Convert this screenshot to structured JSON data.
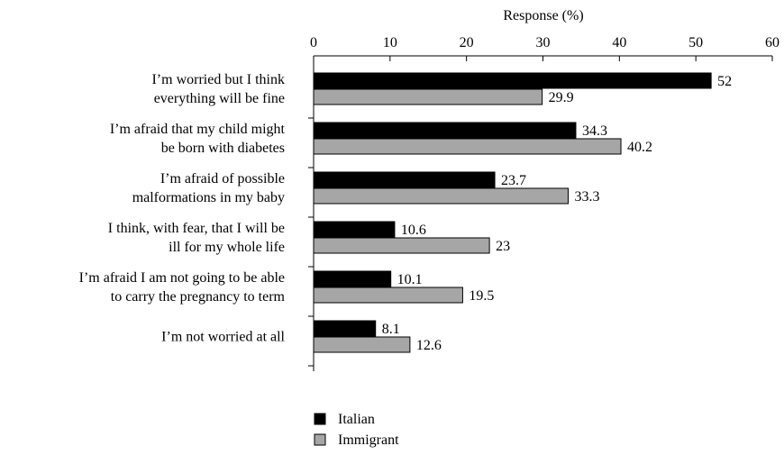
{
  "chart_data": {
    "type": "bar",
    "orientation": "horizontal",
    "xlabel": "Response (%)",
    "xlim": [
      0,
      60
    ],
    "xticks": [
      0,
      10,
      20,
      30,
      40,
      50,
      60
    ],
    "categories": [
      [
        "I’m worried but I think",
        "everything will be fine"
      ],
      [
        "I’m afraid that my child might",
        "be born with diabetes"
      ],
      [
        "I’m afraid of possible",
        "malformations in my baby"
      ],
      [
        "I think, with fear, that I will be",
        "ill for my whole life"
      ],
      [
        "I’m afraid I am not going to be able",
        "to carry the pregnancy to term"
      ],
      [
        "I’m not worried at all"
      ]
    ],
    "series": [
      {
        "name": "Italian",
        "color": "#000000",
        "values": [
          52,
          34.3,
          23.7,
          10.6,
          10.1,
          8.1
        ]
      },
      {
        "name": "Immigrant",
        "color": "#a6a6a6",
        "values": [
          29.9,
          40.2,
          33.3,
          23,
          19.5,
          12.6
        ]
      }
    ],
    "legend_position": "bottom-center",
    "grid": false
  }
}
